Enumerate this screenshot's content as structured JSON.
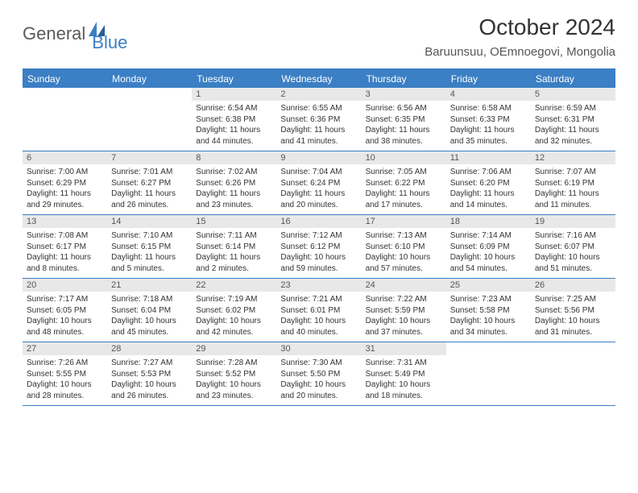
{
  "logo": {
    "part1": "General",
    "part2": "Blue"
  },
  "title": "October 2024",
  "location": "Baruunsuu, OEmnoegovi, Mongolia",
  "colors": {
    "accent": "#3b7fc4",
    "header_bg": "#3b7fc4",
    "daynum_bg": "#e8e8e8",
    "text": "#333333",
    "logo_gray": "#5a5a5a"
  },
  "days_of_week": [
    "Sunday",
    "Monday",
    "Tuesday",
    "Wednesday",
    "Thursday",
    "Friday",
    "Saturday"
  ],
  "weeks": [
    [
      {
        "empty": true
      },
      {
        "empty": true
      },
      {
        "num": "1",
        "sunrise": "Sunrise: 6:54 AM",
        "sunset": "Sunset: 6:38 PM",
        "daylight": "Daylight: 11 hours and 44 minutes."
      },
      {
        "num": "2",
        "sunrise": "Sunrise: 6:55 AM",
        "sunset": "Sunset: 6:36 PM",
        "daylight": "Daylight: 11 hours and 41 minutes."
      },
      {
        "num": "3",
        "sunrise": "Sunrise: 6:56 AM",
        "sunset": "Sunset: 6:35 PM",
        "daylight": "Daylight: 11 hours and 38 minutes."
      },
      {
        "num": "4",
        "sunrise": "Sunrise: 6:58 AM",
        "sunset": "Sunset: 6:33 PM",
        "daylight": "Daylight: 11 hours and 35 minutes."
      },
      {
        "num": "5",
        "sunrise": "Sunrise: 6:59 AM",
        "sunset": "Sunset: 6:31 PM",
        "daylight": "Daylight: 11 hours and 32 minutes."
      }
    ],
    [
      {
        "num": "6",
        "sunrise": "Sunrise: 7:00 AM",
        "sunset": "Sunset: 6:29 PM",
        "daylight": "Daylight: 11 hours and 29 minutes."
      },
      {
        "num": "7",
        "sunrise": "Sunrise: 7:01 AM",
        "sunset": "Sunset: 6:27 PM",
        "daylight": "Daylight: 11 hours and 26 minutes."
      },
      {
        "num": "8",
        "sunrise": "Sunrise: 7:02 AM",
        "sunset": "Sunset: 6:26 PM",
        "daylight": "Daylight: 11 hours and 23 minutes."
      },
      {
        "num": "9",
        "sunrise": "Sunrise: 7:04 AM",
        "sunset": "Sunset: 6:24 PM",
        "daylight": "Daylight: 11 hours and 20 minutes."
      },
      {
        "num": "10",
        "sunrise": "Sunrise: 7:05 AM",
        "sunset": "Sunset: 6:22 PM",
        "daylight": "Daylight: 11 hours and 17 minutes."
      },
      {
        "num": "11",
        "sunrise": "Sunrise: 7:06 AM",
        "sunset": "Sunset: 6:20 PM",
        "daylight": "Daylight: 11 hours and 14 minutes."
      },
      {
        "num": "12",
        "sunrise": "Sunrise: 7:07 AM",
        "sunset": "Sunset: 6:19 PM",
        "daylight": "Daylight: 11 hours and 11 minutes."
      }
    ],
    [
      {
        "num": "13",
        "sunrise": "Sunrise: 7:08 AM",
        "sunset": "Sunset: 6:17 PM",
        "daylight": "Daylight: 11 hours and 8 minutes."
      },
      {
        "num": "14",
        "sunrise": "Sunrise: 7:10 AM",
        "sunset": "Sunset: 6:15 PM",
        "daylight": "Daylight: 11 hours and 5 minutes."
      },
      {
        "num": "15",
        "sunrise": "Sunrise: 7:11 AM",
        "sunset": "Sunset: 6:14 PM",
        "daylight": "Daylight: 11 hours and 2 minutes."
      },
      {
        "num": "16",
        "sunrise": "Sunrise: 7:12 AM",
        "sunset": "Sunset: 6:12 PM",
        "daylight": "Daylight: 10 hours and 59 minutes."
      },
      {
        "num": "17",
        "sunrise": "Sunrise: 7:13 AM",
        "sunset": "Sunset: 6:10 PM",
        "daylight": "Daylight: 10 hours and 57 minutes."
      },
      {
        "num": "18",
        "sunrise": "Sunrise: 7:14 AM",
        "sunset": "Sunset: 6:09 PM",
        "daylight": "Daylight: 10 hours and 54 minutes."
      },
      {
        "num": "19",
        "sunrise": "Sunrise: 7:16 AM",
        "sunset": "Sunset: 6:07 PM",
        "daylight": "Daylight: 10 hours and 51 minutes."
      }
    ],
    [
      {
        "num": "20",
        "sunrise": "Sunrise: 7:17 AM",
        "sunset": "Sunset: 6:05 PM",
        "daylight": "Daylight: 10 hours and 48 minutes."
      },
      {
        "num": "21",
        "sunrise": "Sunrise: 7:18 AM",
        "sunset": "Sunset: 6:04 PM",
        "daylight": "Daylight: 10 hours and 45 minutes."
      },
      {
        "num": "22",
        "sunrise": "Sunrise: 7:19 AM",
        "sunset": "Sunset: 6:02 PM",
        "daylight": "Daylight: 10 hours and 42 minutes."
      },
      {
        "num": "23",
        "sunrise": "Sunrise: 7:21 AM",
        "sunset": "Sunset: 6:01 PM",
        "daylight": "Daylight: 10 hours and 40 minutes."
      },
      {
        "num": "24",
        "sunrise": "Sunrise: 7:22 AM",
        "sunset": "Sunset: 5:59 PM",
        "daylight": "Daylight: 10 hours and 37 minutes."
      },
      {
        "num": "25",
        "sunrise": "Sunrise: 7:23 AM",
        "sunset": "Sunset: 5:58 PM",
        "daylight": "Daylight: 10 hours and 34 minutes."
      },
      {
        "num": "26",
        "sunrise": "Sunrise: 7:25 AM",
        "sunset": "Sunset: 5:56 PM",
        "daylight": "Daylight: 10 hours and 31 minutes."
      }
    ],
    [
      {
        "num": "27",
        "sunrise": "Sunrise: 7:26 AM",
        "sunset": "Sunset: 5:55 PM",
        "daylight": "Daylight: 10 hours and 28 minutes."
      },
      {
        "num": "28",
        "sunrise": "Sunrise: 7:27 AM",
        "sunset": "Sunset: 5:53 PM",
        "daylight": "Daylight: 10 hours and 26 minutes."
      },
      {
        "num": "29",
        "sunrise": "Sunrise: 7:28 AM",
        "sunset": "Sunset: 5:52 PM",
        "daylight": "Daylight: 10 hours and 23 minutes."
      },
      {
        "num": "30",
        "sunrise": "Sunrise: 7:30 AM",
        "sunset": "Sunset: 5:50 PM",
        "daylight": "Daylight: 10 hours and 20 minutes."
      },
      {
        "num": "31",
        "sunrise": "Sunrise: 7:31 AM",
        "sunset": "Sunset: 5:49 PM",
        "daylight": "Daylight: 10 hours and 18 minutes."
      },
      {
        "empty": true
      },
      {
        "empty": true
      }
    ]
  ]
}
